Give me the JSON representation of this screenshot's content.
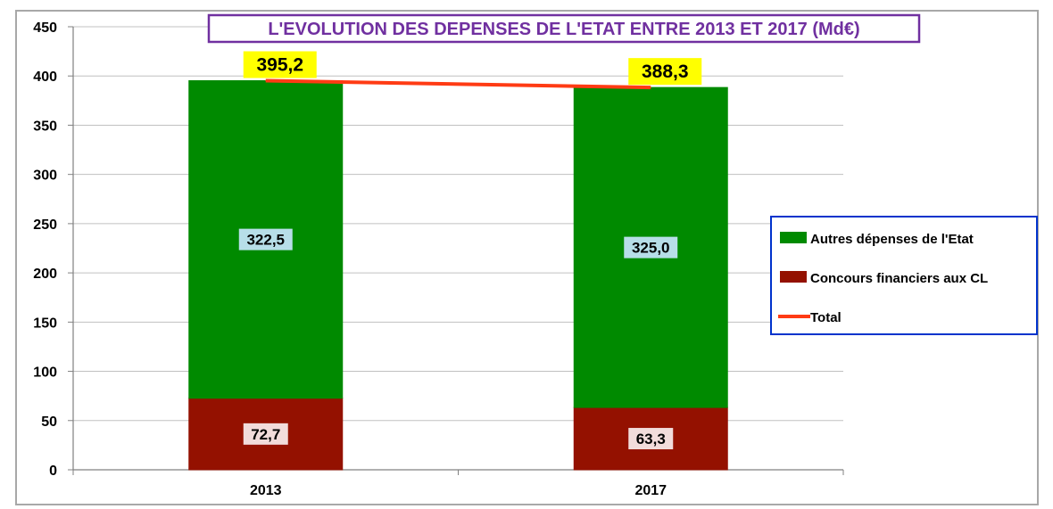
{
  "chart_data": {
    "type": "bar",
    "stacked": true,
    "title": "L'EVOLUTION DES DEPENSES DE L'ETAT ENTRE 2013 ET 2017 (Md€)",
    "categories": [
      "2013",
      "2017"
    ],
    "series": [
      {
        "name": "Concours financiers aux CL",
        "type": "bar",
        "values": [
          72.7,
          63.3
        ],
        "labels": [
          "72,7",
          "63,3"
        ],
        "color": "#941100",
        "label_bg": "#f2dcdb"
      },
      {
        "name": "Autres dépenses de l'Etat",
        "type": "bar",
        "values": [
          322.5,
          325.0
        ],
        "labels": [
          "322,5",
          "325,0"
        ],
        "color": "#008a00",
        "label_bg": "#b7dee8"
      },
      {
        "name": "Total",
        "type": "line",
        "values": [
          395.2,
          388.3
        ],
        "labels": [
          "395,2",
          "388,3"
        ],
        "color": "#ff3b14",
        "label_bg": "#ffff00"
      }
    ],
    "ylim": [
      0,
      450
    ],
    "yticks": [
      0,
      50,
      100,
      150,
      200,
      250,
      300,
      350,
      400,
      450
    ],
    "grid": true,
    "legend": {
      "position": "right",
      "entries": [
        "Autres dépenses de l'Etat",
        "Concours financiers aux CL",
        "Total"
      ]
    },
    "colors": {
      "title": "#7030a0",
      "legend_border": "#0033cc",
      "grid": "#c0c0c0"
    }
  }
}
